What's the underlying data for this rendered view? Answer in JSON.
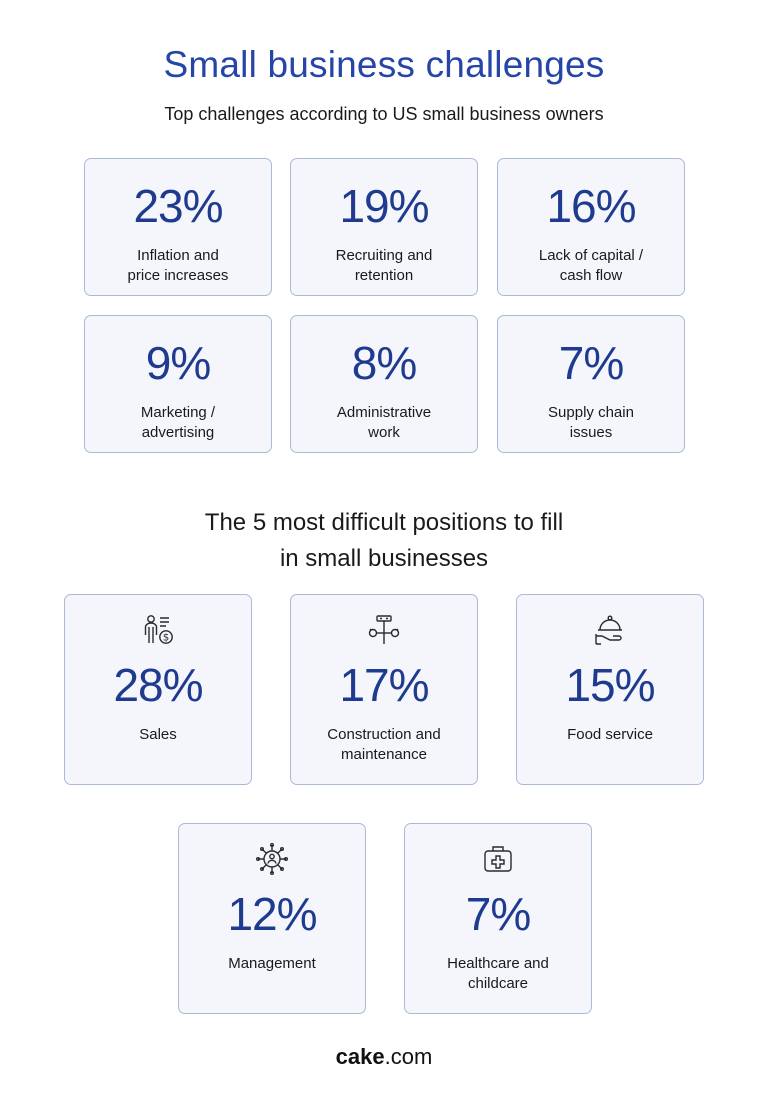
{
  "chart_data": [
    {
      "type": "table",
      "title": "Small business challenges",
      "subtitle": "Top challenges according to US small business owners",
      "items": [
        {
          "value": "23%",
          "label_lines": [
            "Inflation and",
            "price increases"
          ]
        },
        {
          "value": "19%",
          "label_lines": [
            "Recruiting and",
            "retention"
          ]
        },
        {
          "value": "16%",
          "label_lines": [
            "Lack of capital /",
            "cash flow"
          ]
        },
        {
          "value": "9%",
          "label_lines": [
            "Marketing /",
            "advertising"
          ]
        },
        {
          "value": "8%",
          "label_lines": [
            "Administrative",
            "work"
          ]
        },
        {
          "value": "7%",
          "label_lines": [
            "Supply chain",
            "issues"
          ]
        }
      ]
    },
    {
      "type": "table",
      "title_lines": [
        "The 5 most difficult positions to fill",
        "in small businesses"
      ],
      "items": [
        {
          "value": "28%",
          "label_lines": [
            "Sales"
          ],
          "icon": "salesperson-icon"
        },
        {
          "value": "17%",
          "label_lines": [
            "Construction and",
            "maintenance"
          ],
          "icon": "tools-icon"
        },
        {
          "value": "15%",
          "label_lines": [
            "Food service"
          ],
          "icon": "food-service-icon"
        },
        {
          "value": "12%",
          "label_lines": [
            "Management"
          ],
          "icon": "management-icon"
        },
        {
          "value": "7%",
          "label_lines": [
            "Healthcare and",
            "childcare"
          ],
          "icon": "first-aid-kit-icon"
        }
      ]
    }
  ],
  "footer": {
    "brand_bold": "cake",
    "brand_rest": ".com"
  },
  "colors": {
    "accent": "#1f3b8f",
    "title": "#2545a8",
    "card_bg": "#f4f6fb",
    "card_border": "#aab9d8"
  }
}
